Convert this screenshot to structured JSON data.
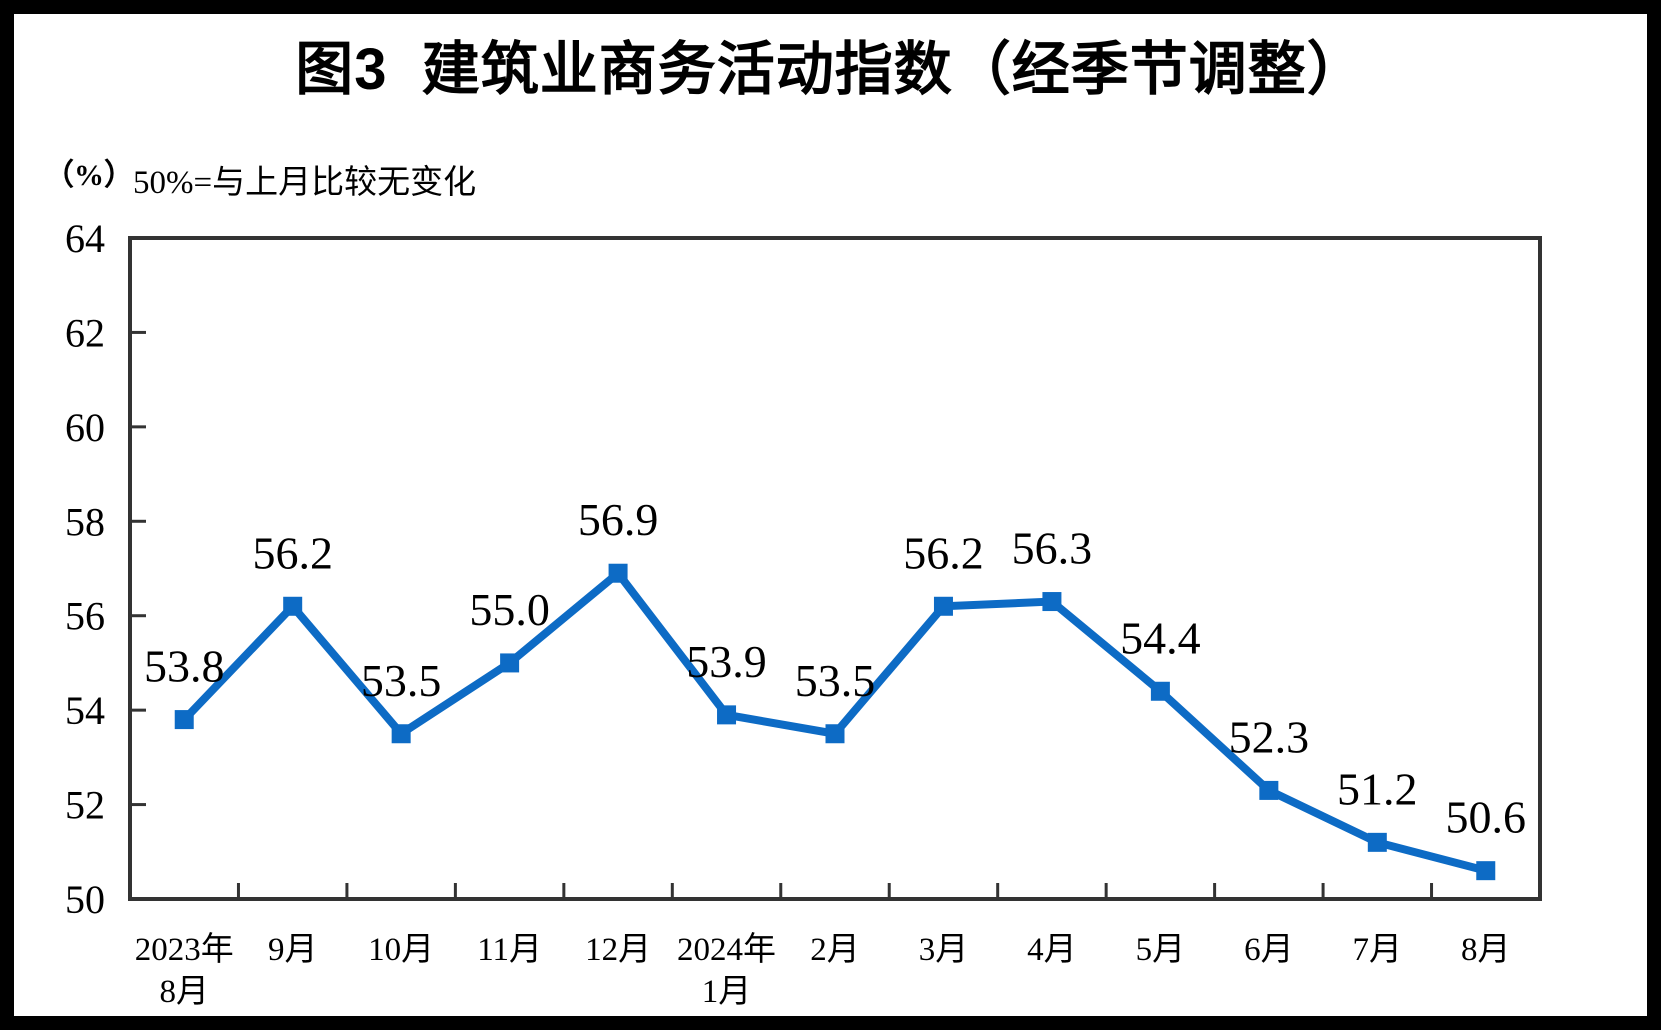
{
  "figure": {
    "title": "图3  建筑业商务活动指数（经季节调整）",
    "unit_label": "（%）",
    "subtitle": "50%=与上月比较无变化"
  },
  "chart_data": {
    "type": "line",
    "title": "图3  建筑业商务活动指数（经季节调整）",
    "annotation": "50%=与上月比较无变化",
    "ylabel": "（%）",
    "xlabel": "",
    "categories": [
      "2023年\n8月",
      "9月",
      "10月",
      "11月",
      "12月",
      "2024年\n1月",
      "2月",
      "3月",
      "4月",
      "5月",
      "6月",
      "7月",
      "8月"
    ],
    "values": [
      53.8,
      56.2,
      53.5,
      55.0,
      56.9,
      53.9,
      53.5,
      56.2,
      56.3,
      54.4,
      52.3,
      51.2,
      50.6
    ],
    "data_labels": [
      "53.8",
      "56.2",
      "53.5",
      "55.0",
      "56.9",
      "53.9",
      "53.5",
      "56.2",
      "56.3",
      "54.4",
      "52.3",
      "51.2",
      "50.6"
    ],
    "series_name": "建筑业商务活动指数",
    "ylim": [
      50,
      64
    ],
    "yticks": [
      50,
      52,
      54,
      56,
      58,
      60,
      62,
      64
    ],
    "grid": false,
    "legend_position": "none",
    "marker": "square",
    "line_color": "#0d6bc5",
    "axis_color": "#333333",
    "label_color": "#000000"
  }
}
